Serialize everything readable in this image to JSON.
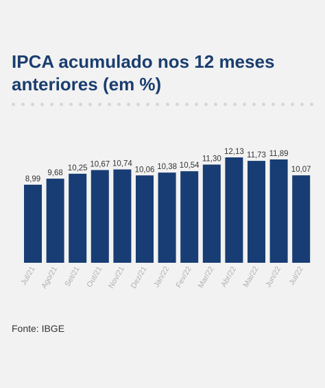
{
  "chart_data": {
    "type": "bar",
    "title": "IPCA acumulado nos 12 meses anteriores (em %)",
    "categories": [
      "Jul/21",
      "Ago/21",
      "Set/21",
      "Out/21",
      "Nov/21",
      "Dez/21",
      "Jan/22",
      "Fev/22",
      "Mar/22",
      "Abr/22",
      "Mai/22",
      "Jun/22",
      "Jul/22"
    ],
    "values": [
      8.99,
      9.68,
      10.25,
      10.67,
      10.74,
      10.06,
      10.38,
      10.54,
      11.3,
      12.13,
      11.73,
      11.89,
      10.07
    ],
    "value_labels": [
      "8,99",
      "9,68",
      "10,25",
      "10,67",
      "10,74",
      "10,06",
      "10,38",
      "10,54",
      "11,30",
      "12,13",
      "11,73",
      "11,89",
      "10,07"
    ],
    "ylim": [
      0,
      12.13
    ],
    "bar_color": "#173d74",
    "grid": false,
    "legend": "none"
  },
  "source": "Fonte: IBGE"
}
